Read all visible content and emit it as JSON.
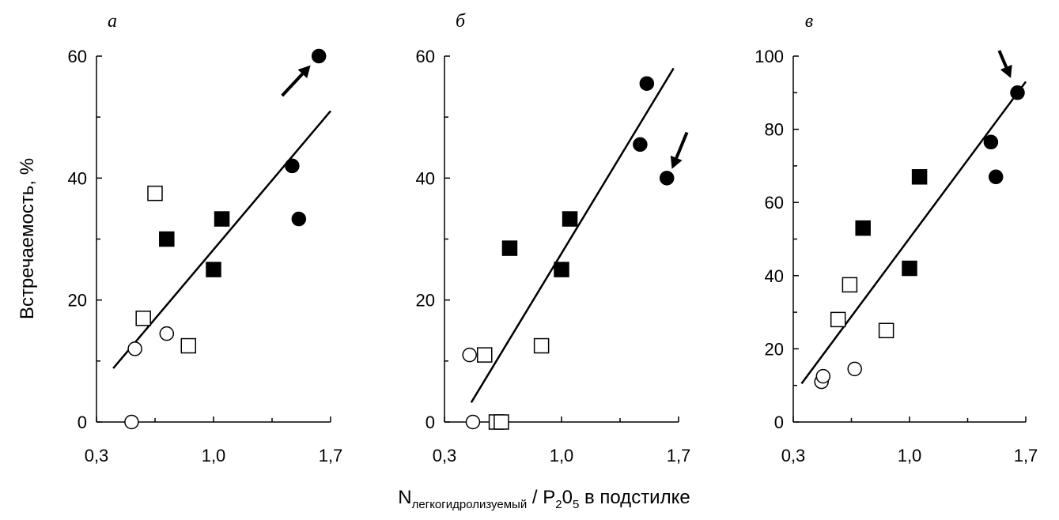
{
  "x_axis_label": {
    "main": "N",
    "subscript": "легкогидролизуемый",
    "rest": " / P",
    "sub2": "2",
    "mid": "0",
    "sub5": "5",
    "tail": " в подстилке"
  },
  "y_axis_label": "Встречаемость, %",
  "chart_data": [
    {
      "type": "scatter",
      "panel": "а",
      "xlim": [
        0.3,
        1.7
      ],
      "ylim": [
        0,
        60
      ],
      "xticks": [
        "0,3",
        "1,0",
        "1,7"
      ],
      "yticks": [
        "0",
        "20",
        "40",
        "60"
      ],
      "ytick_values": [
        0,
        20,
        40,
        60
      ],
      "series": [
        {
          "name": "open circles",
          "marker": "circle",
          "filled": false,
          "points": [
            [
              0.51,
              0
            ],
            [
              0.53,
              12
            ],
            [
              0.72,
              14.5
            ]
          ]
        },
        {
          "name": "open squares",
          "marker": "square",
          "filled": false,
          "points": [
            [
              0.58,
              17
            ],
            [
              0.65,
              37.5
            ],
            [
              0.85,
              12.5
            ]
          ]
        },
        {
          "name": "filled squares",
          "marker": "square",
          "filled": true,
          "points": [
            [
              0.72,
              30
            ],
            [
              1.0,
              25
            ],
            [
              1.05,
              33.3
            ]
          ]
        },
        {
          "name": "filled circles",
          "marker": "circle",
          "filled": true,
          "points": [
            [
              1.47,
              42
            ],
            [
              1.51,
              33.3
            ],
            [
              1.63,
              60
            ]
          ]
        }
      ],
      "fit_line": [
        [
          0.4,
          8.8
        ],
        [
          1.7,
          51
        ]
      ],
      "arrow": {
        "from": [
          1.41,
          53.5
        ],
        "to": [
          1.58,
          58.5
        ]
      }
    },
    {
      "type": "scatter",
      "panel": "б",
      "xlim": [
        0.3,
        1.7
      ],
      "ylim": [
        0,
        60
      ],
      "xticks": [
        "0,3",
        "1,0",
        "1,7"
      ],
      "yticks": [
        "0",
        "20",
        "40",
        "60"
      ],
      "ytick_values": [
        0,
        20,
        40,
        60
      ],
      "series": [
        {
          "name": "open circles",
          "marker": "circle",
          "filled": false,
          "points": [
            [
              0.45,
              11
            ],
            [
              0.47,
              0
            ]
          ]
        },
        {
          "name": "open squares",
          "marker": "square",
          "filled": false,
          "points": [
            [
              0.54,
              11
            ],
            [
              0.61,
              0
            ],
            [
              0.64,
              0
            ],
            [
              0.88,
              12.5
            ]
          ]
        },
        {
          "name": "filled squares",
          "marker": "square",
          "filled": true,
          "points": [
            [
              0.69,
              28.5
            ],
            [
              1.0,
              25
            ],
            [
              1.05,
              33.3
            ]
          ]
        },
        {
          "name": "filled circles",
          "marker": "circle",
          "filled": true,
          "points": [
            [
              1.47,
              45.5
            ],
            [
              1.51,
              55.5
            ],
            [
              1.63,
              40
            ]
          ]
        }
      ],
      "fit_line": [
        [
          0.46,
          3.2
        ],
        [
          1.67,
          58
        ]
      ],
      "arrow": {
        "from": [
          1.75,
          47.5
        ],
        "to": [
          1.66,
          41.5
        ]
      }
    },
    {
      "type": "scatter",
      "panel": "в",
      "xlim": [
        0.3,
        1.7
      ],
      "ylim": [
        0,
        100
      ],
      "xticks": [
        "0,3",
        "1,0",
        "1,7"
      ],
      "yticks": [
        "0",
        "20",
        "40",
        "60",
        "80",
        "100"
      ],
      "ytick_values": [
        0,
        20,
        40,
        60,
        80,
        100
      ],
      "series": [
        {
          "name": "open circles",
          "marker": "circle",
          "filled": false,
          "points": [
            [
              0.47,
              11
            ],
            [
              0.48,
              12.5
            ],
            [
              0.67,
              14.5
            ]
          ]
        },
        {
          "name": "open squares",
          "marker": "square",
          "filled": false,
          "points": [
            [
              0.57,
              28
            ],
            [
              0.64,
              37.5
            ],
            [
              0.86,
              25
            ]
          ]
        },
        {
          "name": "filled squares",
          "marker": "square",
          "filled": true,
          "points": [
            [
              0.72,
              53
            ],
            [
              1.0,
              42
            ],
            [
              1.06,
              67
            ]
          ]
        },
        {
          "name": "filled circles",
          "marker": "circle",
          "filled": true,
          "points": [
            [
              1.49,
              76.5
            ],
            [
              1.52,
              67
            ],
            [
              1.65,
              90
            ]
          ]
        }
      ],
      "fit_line": [
        [
          0.35,
          10.5
        ],
        [
          1.7,
          93
        ]
      ],
      "arrow": {
        "from": [
          1.54,
          101.5
        ],
        "to": [
          1.61,
          94
        ]
      }
    }
  ]
}
